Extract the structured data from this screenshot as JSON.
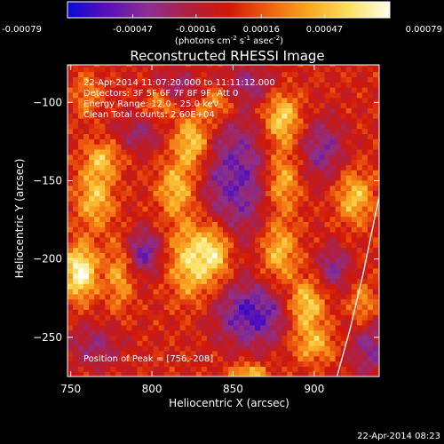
{
  "chart_data": {
    "type": "heatmap",
    "title": "Reconstructed RHESSI Image",
    "xlabel": "Heliocentric X (arcsec)",
    "ylabel": "Heliocentric Y (arcsec)",
    "xlim": [
      748,
      940
    ],
    "ylim": [
      -275,
      -76
    ],
    "xticks": [
      750,
      800,
      850,
      900
    ],
    "yticks": [
      -100,
      -150,
      -200,
      -250
    ],
    "colorbar": {
      "ticks": [
        "-0.00079",
        "-0.00047",
        "-0.00016",
        "0.00016",
        "0.00047",
        "0.00079"
      ],
      "range": [
        -0.00079,
        0.00079
      ],
      "label_main": "(photons cm",
      "label_exp1": "-2",
      "label_mid": " s",
      "label_exp2": "-1",
      "label_end": " asec",
      "label_exp3": "-2",
      "label_close": ")",
      "colormap": [
        "#0a0ad8",
        "#5a10b8",
        "#8a3090",
        "#b02040",
        "#d01808",
        "#f06010",
        "#f8a820",
        "#fce060",
        "#fffff0"
      ]
    },
    "annotations": {
      "time": "22-Apr-2014 11:07:20.000 to 11:11:12.000",
      "detectors": "Detectors: 3F 5F 6F 7F 8F 9F, Att 0",
      "energy": "Energy Range: 12.0 - 25.0 keV",
      "clean": "Clean     Total counts: 2.60E+04",
      "peak": "Position of Peak = [756,-208]"
    },
    "footer_timestamp": "22-Apr-2014 08:23",
    "features": [
      {
        "x": 795,
        "y": -195,
        "v": -0.0005,
        "sx": 8,
        "sy": 10
      },
      {
        "x": 792,
        "y": -120,
        "v": -0.0003,
        "sx": 10,
        "sy": 8
      },
      {
        "x": 862,
        "y": -235,
        "v": -0.0006,
        "sx": 16,
        "sy": 14
      },
      {
        "x": 852,
        "y": -148,
        "v": -0.0005,
        "sx": 16,
        "sy": 28
      },
      {
        "x": 912,
        "y": -205,
        "v": -0.0004,
        "sx": 7,
        "sy": 10
      },
      {
        "x": 905,
        "y": -130,
        "v": -0.0004,
        "sx": 10,
        "sy": 14
      },
      {
        "x": 765,
        "y": -255,
        "v": -0.0003,
        "sx": 12,
        "sy": 10
      },
      {
        "x": 935,
        "y": -255,
        "v": -0.0004,
        "sx": 10,
        "sy": 14
      },
      {
        "x": 815,
        "y": -90,
        "v": -0.0003,
        "sx": 10,
        "sy": 8
      },
      {
        "x": 860,
        "y": -88,
        "v": -0.0003,
        "sx": 12,
        "sy": 8
      },
      {
        "x": 756,
        "y": -208,
        "v": 0.0008,
        "sx": 7,
        "sy": 12
      },
      {
        "x": 765,
        "y": -160,
        "v": 0.0005,
        "sx": 8,
        "sy": 14
      },
      {
        "x": 770,
        "y": -135,
        "v": 0.0004,
        "sx": 8,
        "sy": 8
      },
      {
        "x": 780,
        "y": -210,
        "v": 0.0004,
        "sx": 6,
        "sy": 16
      },
      {
        "x": 825,
        "y": -125,
        "v": 0.0006,
        "sx": 8,
        "sy": 12
      },
      {
        "x": 815,
        "y": -155,
        "v": 0.0005,
        "sx": 8,
        "sy": 12
      },
      {
        "x": 825,
        "y": -200,
        "v": 0.0006,
        "sx": 10,
        "sy": 18
      },
      {
        "x": 840,
        "y": -195,
        "v": 0.0005,
        "sx": 7,
        "sy": 12
      },
      {
        "x": 840,
        "y": -100,
        "v": 0.0004,
        "sx": 8,
        "sy": 8
      },
      {
        "x": 880,
        "y": -110,
        "v": 0.0006,
        "sx": 8,
        "sy": 12
      },
      {
        "x": 880,
        "y": -150,
        "v": 0.0005,
        "sx": 8,
        "sy": 14
      },
      {
        "x": 878,
        "y": -195,
        "v": 0.0005,
        "sx": 8,
        "sy": 14
      },
      {
        "x": 895,
        "y": -230,
        "v": 0.0006,
        "sx": 8,
        "sy": 12
      },
      {
        "x": 900,
        "y": -255,
        "v": 0.0004,
        "sx": 10,
        "sy": 8
      },
      {
        "x": 925,
        "y": -160,
        "v": 0.0005,
        "sx": 8,
        "sy": 12
      },
      {
        "x": 930,
        "y": -230,
        "v": 0.0004,
        "sx": 6,
        "sy": 10
      },
      {
        "x": 805,
        "y": -100,
        "v": 0.0004,
        "sx": 6,
        "sy": 6
      },
      {
        "x": 860,
        "y": -272,
        "v": 0.0005,
        "sx": 8,
        "sy": 4
      },
      {
        "x": 760,
        "y": -95,
        "v": 0.0003,
        "sx": 6,
        "sy": 10
      }
    ],
    "limb_curve": {
      "x": [
        914,
        922,
        930,
        936,
        940
      ],
      "y": [
        -275,
        -245,
        -210,
        -180,
        -160
      ]
    }
  }
}
